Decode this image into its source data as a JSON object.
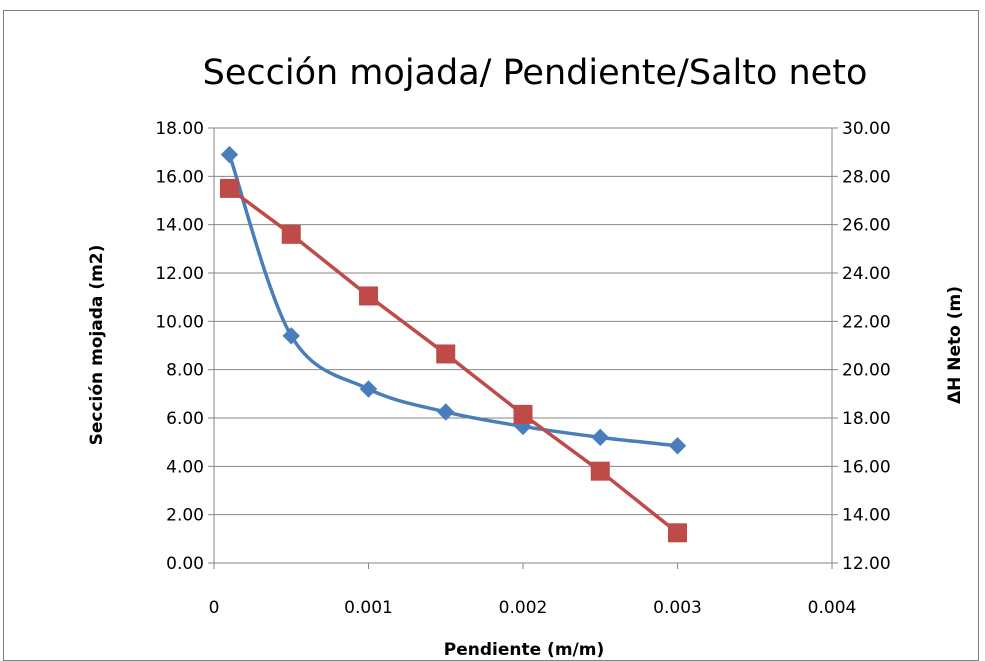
{
  "chart_data": {
    "type": "line",
    "title": "Sección mojada/ Pendiente/Salto neto",
    "xlabel": "Pendiente (m/m)",
    "ylabel": "Sección mojada (m2)",
    "y2label": "ΔH Neto (m)",
    "xlim": [
      0,
      0.004
    ],
    "ylim": [
      0,
      18
    ],
    "y2lim": [
      12,
      30
    ],
    "x_ticks": [
      "0",
      "0.001",
      "0.002",
      "0.003",
      "0.004"
    ],
    "y_ticks": [
      "0.00",
      "2.00",
      "4.00",
      "6.00",
      "8.00",
      "10.00",
      "12.00",
      "14.00",
      "16.00",
      "18.00"
    ],
    "y2_ticks": [
      "12.00",
      "14.00",
      "16.00",
      "18.00",
      "20.00",
      "22.00",
      "24.00",
      "26.00",
      "28.00",
      "30.00"
    ],
    "grid": true,
    "series": [
      {
        "axis": "left",
        "color": "#4a7ebb",
        "marker": "diamond",
        "smooth": true,
        "x": [
          0.0001,
          0.0005,
          0.001,
          0.0015,
          0.002,
          0.0025,
          0.003
        ],
        "values": [
          16.9,
          9.4,
          7.2,
          6.25,
          5.65,
          5.2,
          4.85
        ]
      },
      {
        "axis": "right",
        "color": "#be4b48",
        "marker": "square",
        "smooth": false,
        "x": [
          0.0001,
          0.0005,
          0.001,
          0.0015,
          0.002,
          0.0025,
          0.003
        ],
        "values": [
          27.5,
          25.6,
          23.05,
          20.65,
          18.15,
          15.8,
          13.25
        ]
      }
    ]
  }
}
